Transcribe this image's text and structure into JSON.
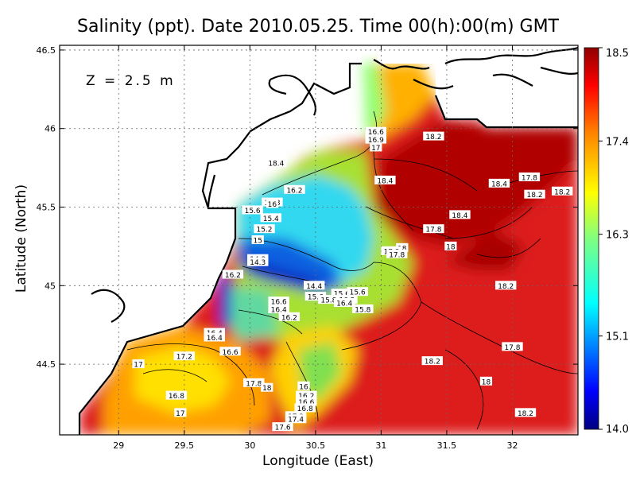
{
  "title": "Salinity (ppt). Date 2010.05.25. Time 00(h):00(m) GMT",
  "depth_label": "Z = 2.5 m",
  "xlabel": "Longitude (East)",
  "ylabel": "Latitude (North)",
  "x_ticks": [
    "29",
    "29.5",
    "30",
    "30.5",
    "31",
    "31.5",
    "32"
  ],
  "y_ticks": [
    "46.5",
    "46",
    "45.5",
    "45",
    "44.5"
  ],
  "colorbar_ticks": [
    "18.5",
    "17.4",
    "16.3",
    "15.1",
    "14.0"
  ],
  "chart_data": {
    "type": "heatmap",
    "title": "Salinity (ppt). Date 2010.05.25. Time 00(h):00(m) GMT",
    "xlabel": "Longitude (East)",
    "ylabel": "Latitude (North)",
    "xlim": [
      28.55,
      32.5
    ],
    "ylim": [
      44.05,
      46.53
    ],
    "color_range": [
      14.0,
      18.5
    ],
    "colorbar_ticks": [
      18.5,
      17.4,
      16.3,
      15.1,
      14.0
    ],
    "grid": true,
    "annotation": "Z = 2.5 m",
    "contour_labels": [
      {
        "lon": 30.96,
        "lat": 45.98,
        "value": "16.6"
      },
      {
        "lon": 30.96,
        "lat": 45.93,
        "value": "16.9"
      },
      {
        "lon": 30.96,
        "lat": 45.88,
        "value": "17"
      },
      {
        "lon": 31.4,
        "lat": 45.95,
        "value": "18.2"
      },
      {
        "lon": 30.2,
        "lat": 45.78,
        "value": "18.4"
      },
      {
        "lon": 31.03,
        "lat": 45.67,
        "value": "18.4"
      },
      {
        "lon": 31.9,
        "lat": 45.65,
        "value": "18.4"
      },
      {
        "lon": 32.13,
        "lat": 45.69,
        "value": "17.8"
      },
      {
        "lon": 32.17,
        "lat": 45.58,
        "value": "18.2"
      },
      {
        "lon": 32.38,
        "lat": 45.6,
        "value": "18.2"
      },
      {
        "lon": 30.34,
        "lat": 45.61,
        "value": "16.2"
      },
      {
        "lon": 30.17,
        "lat": 45.53,
        "value": "15.8"
      },
      {
        "lon": 30.17,
        "lat": 45.52,
        "value": "16"
      },
      {
        "lon": 30.02,
        "lat": 45.48,
        "value": "15.6"
      },
      {
        "lon": 30.16,
        "lat": 45.43,
        "value": "15.4"
      },
      {
        "lon": 30.11,
        "lat": 45.36,
        "value": "15.2"
      },
      {
        "lon": 31.6,
        "lat": 45.45,
        "value": "18.4"
      },
      {
        "lon": 31.4,
        "lat": 45.36,
        "value": "17.8"
      },
      {
        "lon": 30.06,
        "lat": 45.29,
        "value": "15"
      },
      {
        "lon": 31.16,
        "lat": 45.24,
        "value": "18"
      },
      {
        "lon": 31.53,
        "lat": 45.25,
        "value": "18"
      },
      {
        "lon": 31.08,
        "lat": 45.22,
        "value": "17.3"
      },
      {
        "lon": 31.12,
        "lat": 45.2,
        "value": "17.8"
      },
      {
        "lon": 30.06,
        "lat": 45.17,
        "value": "14.8"
      },
      {
        "lon": 30.06,
        "lat": 45.15,
        "value": "14.3"
      },
      {
        "lon": 29.87,
        "lat": 45.07,
        "value": "16.2"
      },
      {
        "lon": 30.49,
        "lat": 45.0,
        "value": "14.4"
      },
      {
        "lon": 30.5,
        "lat": 44.93,
        "value": "15.6"
      },
      {
        "lon": 30.7,
        "lat": 44.95,
        "value": "15.6"
      },
      {
        "lon": 30.82,
        "lat": 44.96,
        "value": "15.6"
      },
      {
        "lon": 30.6,
        "lat": 44.91,
        "value": "15.8"
      },
      {
        "lon": 30.74,
        "lat": 44.91,
        "value": "16.2"
      },
      {
        "lon": 30.72,
        "lat": 44.89,
        "value": "16.4"
      },
      {
        "lon": 30.86,
        "lat": 44.85,
        "value": "15.8"
      },
      {
        "lon": 30.22,
        "lat": 44.9,
        "value": "16.6"
      },
      {
        "lon": 30.22,
        "lat": 44.85,
        "value": "16.4"
      },
      {
        "lon": 31.95,
        "lat": 45.0,
        "value": "18.2"
      },
      {
        "lon": 30.3,
        "lat": 44.8,
        "value": "16.2"
      },
      {
        "lon": 29.73,
        "lat": 44.7,
        "value": "16.4"
      },
      {
        "lon": 29.73,
        "lat": 44.67,
        "value": "16.4"
      },
      {
        "lon": 29.85,
        "lat": 44.58,
        "value": "16.6"
      },
      {
        "lon": 32.0,
        "lat": 44.61,
        "value": "17.8"
      },
      {
        "lon": 29.5,
        "lat": 44.55,
        "value": "17.2"
      },
      {
        "lon": 29.15,
        "lat": 44.5,
        "value": "17"
      },
      {
        "lon": 31.39,
        "lat": 44.52,
        "value": "18.2"
      },
      {
        "lon": 31.8,
        "lat": 44.39,
        "value": "18"
      },
      {
        "lon": 30.03,
        "lat": 44.38,
        "value": "17.8"
      },
      {
        "lon": 30.13,
        "lat": 44.35,
        "value": "18"
      },
      {
        "lon": 30.41,
        "lat": 44.36,
        "value": "16"
      },
      {
        "lon": 30.43,
        "lat": 44.3,
        "value": "16.2"
      },
      {
        "lon": 30.43,
        "lat": 44.26,
        "value": "16.6"
      },
      {
        "lon": 30.42,
        "lat": 44.22,
        "value": "16.8"
      },
      {
        "lon": 29.44,
        "lat": 44.3,
        "value": "16.8"
      },
      {
        "lon": 29.47,
        "lat": 44.19,
        "value": "17"
      },
      {
        "lon": 32.1,
        "lat": 44.19,
        "value": "18.2"
      },
      {
        "lon": 30.35,
        "lat": 44.17,
        "value": "17.2"
      },
      {
        "lon": 30.35,
        "lat": 44.15,
        "value": "17.4"
      },
      {
        "lon": 30.25,
        "lat": 44.1,
        "value": "17.6"
      }
    ]
  }
}
